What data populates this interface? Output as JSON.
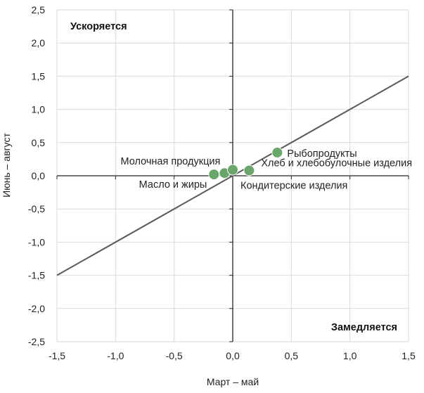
{
  "chart_data": {
    "type": "scatter",
    "xlabel": "Март – май",
    "ylabel": "Июнь – август",
    "xlim": [
      -1.5,
      1.5
    ],
    "ylim": [
      -2.5,
      2.5
    ],
    "x_ticks": [
      -1.5,
      -1.0,
      -0.5,
      0.0,
      0.5,
      1.0,
      1.5
    ],
    "y_ticks": [
      -2.5,
      -2.0,
      -1.5,
      -1.0,
      -0.5,
      0.0,
      0.5,
      1.0,
      1.5,
      2.0,
      2.5
    ],
    "grid": true,
    "tick_decimal_separator": ",",
    "annotations": [
      {
        "text": "Ускоряется",
        "quadrant": "top-left"
      },
      {
        "text": "Замедляется",
        "quadrant": "bottom-right"
      }
    ],
    "reference_line": {
      "type": "identity",
      "from": [
        -1.5,
        -1.5
      ],
      "to": [
        1.5,
        1.5
      ],
      "color": "#595959"
    },
    "points": [
      {
        "label": "Масло и жиры",
        "x": -0.16,
        "y": 0.02
      },
      {
        "label": "Молочная продукция",
        "x": -0.07,
        "y": 0.04
      },
      {
        "label": "Кондитерские изделия",
        "x": 0.0,
        "y": 0.09
      },
      {
        "label": "Хлеб и хлебобулочные изделия",
        "x": 0.14,
        "y": 0.08
      },
      {
        "label": "Рыбопродукты",
        "x": 0.38,
        "y": 0.35
      }
    ],
    "colors": {
      "point_fill": "#6aa56a",
      "point_stroke": "#ffffff",
      "grid": "#d9d9d9",
      "axis": "#262626",
      "line": "#595959"
    }
  }
}
